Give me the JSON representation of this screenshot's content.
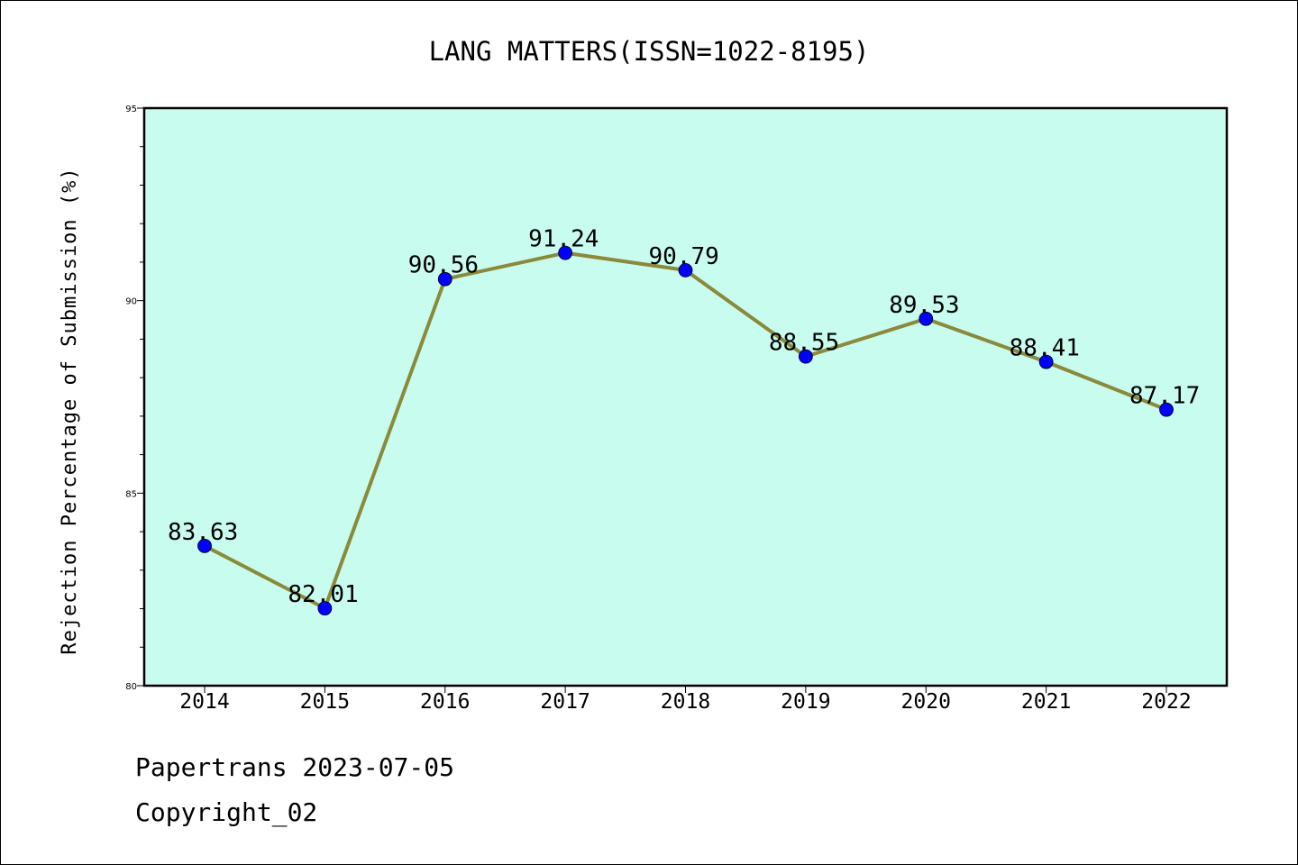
{
  "chart_data": {
    "type": "line",
    "title": "LANG MATTERS(ISSN=1022-8195)",
    "xlabel": "",
    "ylabel": "Rejection Percentage of Submission (%)",
    "categories": [
      "2014",
      "2015",
      "2016",
      "2017",
      "2018",
      "2019",
      "2020",
      "2021",
      "2022"
    ],
    "series": [
      {
        "values": [
          83.63,
          82.01,
          90.56,
          91.24,
          90.79,
          88.55,
          89.53,
          88.41,
          87.17
        ]
      }
    ],
    "data_labels": [
      "83.63",
      "82.01",
      "90.56",
      "91.24",
      "90.79",
      "88.55",
      "89.53",
      "88.41",
      "87.17"
    ],
    "ylim": [
      80,
      95
    ],
    "yticks": [
      80,
      85,
      90,
      95
    ],
    "grid": false,
    "colors": {
      "plot_background": "#c8fcee",
      "line": "#8b8a3a",
      "marker": "#0000ff"
    }
  },
  "footer": {
    "line1": "Papertrans 2023-07-05",
    "line2": "Copyright_02"
  }
}
